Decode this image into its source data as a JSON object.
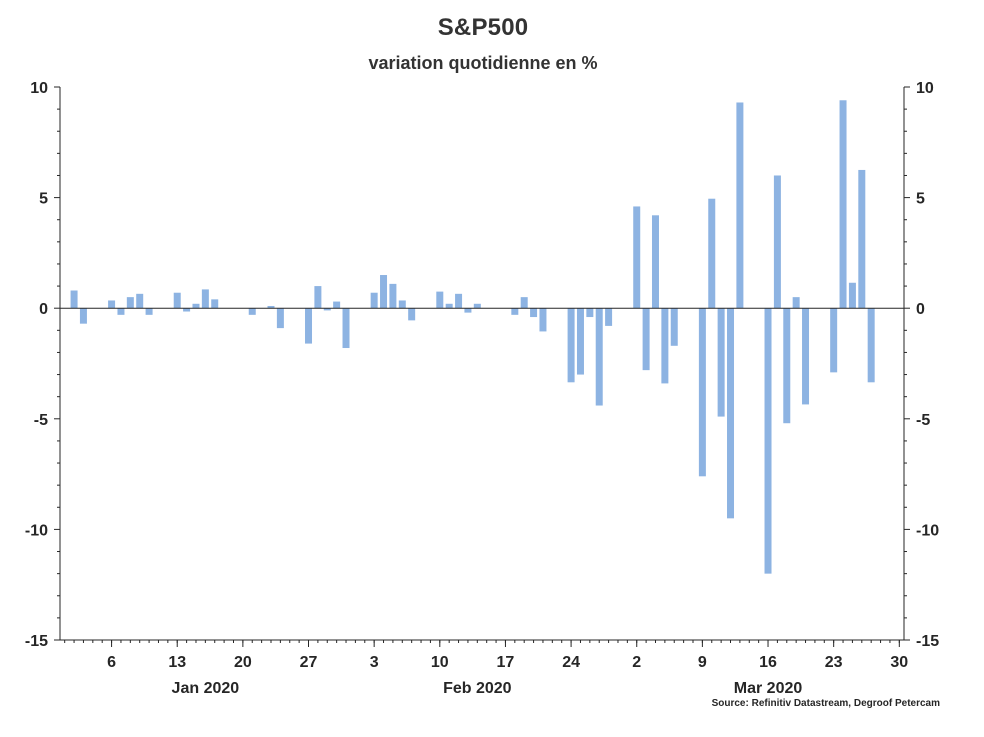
{
  "chart_data": {
    "type": "bar",
    "title": "S&P500",
    "subtitle": "variation quotidienne en %",
    "source": "Source: Refinitiv Datastream, Degroof Petercam",
    "xlabel": "",
    "ylabel": "",
    "ylim": [
      -15,
      10
    ],
    "y_ticks": [
      10,
      5,
      0,
      -5,
      -10,
      -15
    ],
    "y_tick_labels": [
      "10",
      "5",
      "0",
      "-5",
      "-10",
      "-15"
    ],
    "secondary_y_axis": true,
    "grid": false,
    "legend": "none",
    "bar_color": "#8DB3E2",
    "x_tick_labels": [
      {
        "label": "6",
        "date": "2020-01-06"
      },
      {
        "label": "13",
        "date": "2020-01-13"
      },
      {
        "label": "20",
        "date": "2020-01-20"
      },
      {
        "label": "27",
        "date": "2020-01-27"
      },
      {
        "label": "3",
        "date": "2020-02-03"
      },
      {
        "label": "10",
        "date": "2020-02-10"
      },
      {
        "label": "17",
        "date": "2020-02-17"
      },
      {
        "label": "24",
        "date": "2020-02-24"
      },
      {
        "label": "2",
        "date": "2020-03-02"
      },
      {
        "label": "9",
        "date": "2020-03-09"
      },
      {
        "label": "16",
        "date": "2020-03-16"
      },
      {
        "label": "23",
        "date": "2020-03-23"
      },
      {
        "label": "30",
        "date": "2020-03-30"
      }
    ],
    "month_labels": [
      {
        "label": "Jan 2020",
        "date": "2020-01-16"
      },
      {
        "label": "Feb 2020",
        "date": "2020-02-14"
      },
      {
        "label": "Mar 2020",
        "date": "2020-03-16"
      }
    ],
    "x_range": [
      "2020-01-01",
      "2020-03-31"
    ],
    "series": [
      {
        "dates": [
          "2020-01-02",
          "2020-01-03",
          "2020-01-06",
          "2020-01-07",
          "2020-01-08",
          "2020-01-09",
          "2020-01-10",
          "2020-01-13",
          "2020-01-14",
          "2020-01-15",
          "2020-01-16",
          "2020-01-17",
          "2020-01-20",
          "2020-01-21",
          "2020-01-22",
          "2020-01-23",
          "2020-01-24",
          "2020-01-27",
          "2020-01-28",
          "2020-01-29",
          "2020-01-30",
          "2020-01-31",
          "2020-02-03",
          "2020-02-04",
          "2020-02-05",
          "2020-02-06",
          "2020-02-07",
          "2020-02-10",
          "2020-02-11",
          "2020-02-12",
          "2020-02-13",
          "2020-02-14",
          "2020-02-17",
          "2020-02-18",
          "2020-02-19",
          "2020-02-20",
          "2020-02-21",
          "2020-02-24",
          "2020-02-25",
          "2020-02-26",
          "2020-02-27",
          "2020-02-28",
          "2020-03-02",
          "2020-03-03",
          "2020-03-04",
          "2020-03-05",
          "2020-03-06",
          "2020-03-09",
          "2020-03-10",
          "2020-03-11",
          "2020-03-12",
          "2020-03-13",
          "2020-03-16",
          "2020-03-17",
          "2020-03-18",
          "2020-03-19",
          "2020-03-20",
          "2020-03-23",
          "2020-03-24",
          "2020-03-25",
          "2020-03-26",
          "2020-03-27"
        ],
        "values": [
          0.8,
          -0.7,
          0.35,
          -0.3,
          0.5,
          0.65,
          -0.3,
          0.7,
          -0.15,
          0.2,
          0.85,
          0.4,
          0.0,
          -0.3,
          0.0,
          0.1,
          -0.9,
          -1.6,
          1.0,
          -0.1,
          0.3,
          -1.8,
          0.7,
          1.5,
          1.1,
          0.35,
          -0.55,
          0.75,
          0.2,
          0.65,
          -0.2,
          0.2,
          0.0,
          -0.3,
          0.5,
          -0.4,
          -1.05,
          -3.35,
          -3.0,
          -0.4,
          -4.4,
          -0.8,
          4.6,
          -2.8,
          4.2,
          -3.4,
          -1.7,
          -7.6,
          4.95,
          -4.9,
          -9.5,
          9.3,
          -12.0,
          6.0,
          -5.2,
          0.5,
          -4.35,
          -2.9,
          9.4,
          1.15,
          6.25,
          -3.35
        ]
      }
    ]
  }
}
